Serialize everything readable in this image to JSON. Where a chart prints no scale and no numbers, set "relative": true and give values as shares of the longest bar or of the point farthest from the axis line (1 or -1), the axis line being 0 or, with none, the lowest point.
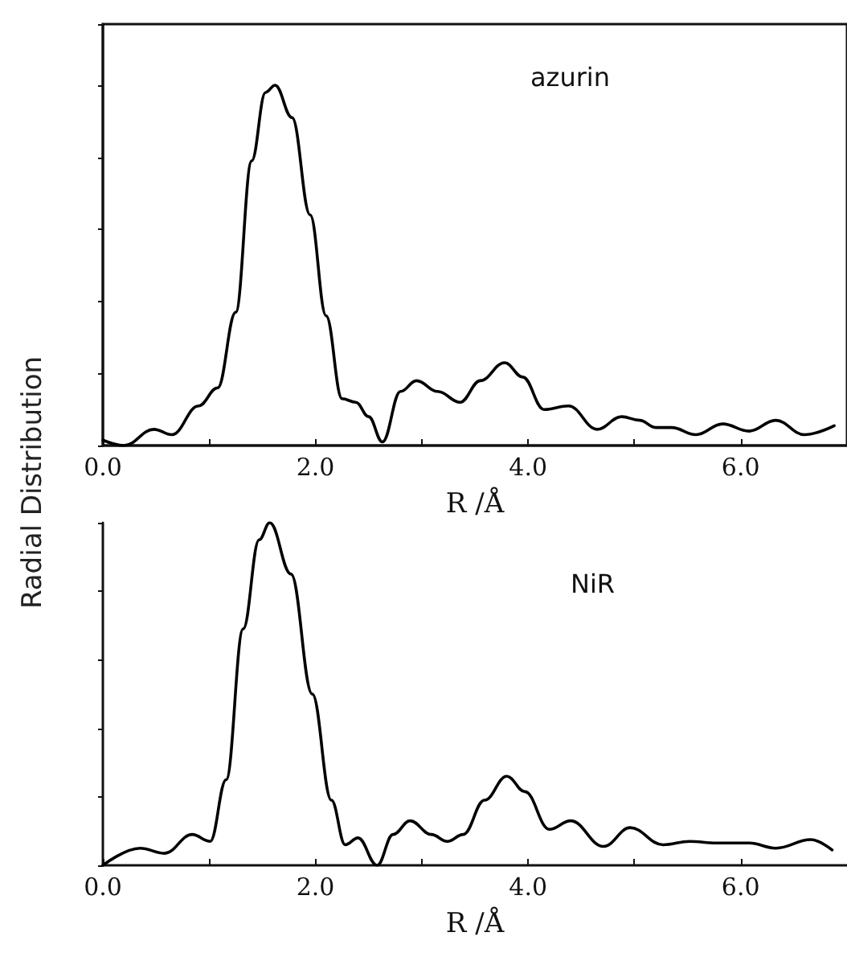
{
  "chart_data": [
    {
      "type": "line",
      "relative": true,
      "ylabel": "Radial Distribution",
      "xlabel": "R /Å",
      "annotations": [
        "azurin"
      ],
      "tick_labels": "x",
      "grid": false,
      "marker": "none",
      "color": "#000000",
      "xlim": [
        0,
        7
      ],
      "xticks": [
        {
          "value": 0,
          "label": "0.0"
        },
        {
          "value": 1,
          "label": null
        },
        {
          "value": 2,
          "label": "2.0"
        },
        {
          "value": 3,
          "label": null
        },
        {
          "value": 4,
          "label": "4.0"
        },
        {
          "value": 5,
          "label": null
        },
        {
          "value": 6,
          "label": "6.0"
        }
      ],
      "x": [
        0,
        0.2,
        0.48,
        0.65,
        0.9,
        1.08,
        1.25,
        1.4,
        1.53,
        1.62,
        1.78,
        1.95,
        2.1,
        2.25,
        2.38,
        2.5,
        2.63,
        2.8,
        2.95,
        3.15,
        3.36,
        3.55,
        3.78,
        3.95,
        4.15,
        4.38,
        4.65,
        4.88,
        5.05,
        5.2,
        5.35,
        5.58,
        5.83,
        6.08,
        6.33,
        6.6,
        6.88
      ],
      "values": [
        0.015,
        0,
        0.045,
        0.03,
        0.11,
        0.16,
        0.37,
        0.79,
        0.98,
        1,
        0.91,
        0.64,
        0.36,
        0.13,
        0.12,
        0.08,
        0.01,
        0.15,
        0.18,
        0.15,
        0.12,
        0.18,
        0.23,
        0.19,
        0.1,
        0.11,
        0.045,
        0.08,
        0.07,
        0.05,
        0.05,
        0.03,
        0.06,
        0.04,
        0.07,
        0.03,
        0.055
      ]
    },
    {
      "type": "line",
      "relative": true,
      "xlabel": "R /Å",
      "annotations": [
        "NiR"
      ],
      "tick_labels": "x",
      "grid": false,
      "marker": "none",
      "color": "#000000",
      "xlim": [
        0,
        7
      ],
      "xticks": [
        {
          "value": 0,
          "label": "0.0"
        },
        {
          "value": 1,
          "label": null
        },
        {
          "value": 2,
          "label": "2.0"
        },
        {
          "value": 3,
          "label": null
        },
        {
          "value": 4,
          "label": "4.0"
        },
        {
          "value": 5,
          "label": null
        },
        {
          "value": 6,
          "label": "6.0"
        }
      ],
      "x": [
        0,
        0.35,
        0.58,
        0.84,
        1.01,
        1.16,
        1.32,
        1.47,
        1.57,
        1.77,
        1.97,
        2.15,
        2.28,
        2.4,
        2.58,
        2.73,
        2.89,
        3.09,
        3.24,
        3.39,
        3.59,
        3.8,
        3.97,
        4.2,
        4.4,
        4.71,
        4.96,
        5.27,
        5.52,
        5.77,
        6.08,
        6.33,
        6.66,
        6.86
      ],
      "values": [
        0,
        0.05,
        0.035,
        0.09,
        0.07,
        0.25,
        0.69,
        0.95,
        1,
        0.85,
        0.5,
        0.19,
        0.06,
        0.08,
        0,
        0.09,
        0.13,
        0.09,
        0.07,
        0.09,
        0.19,
        0.26,
        0.215,
        0.105,
        0.13,
        0.055,
        0.11,
        0.06,
        0.07,
        0.065,
        0.065,
        0.05,
        0.075,
        0.045
      ]
    }
  ]
}
